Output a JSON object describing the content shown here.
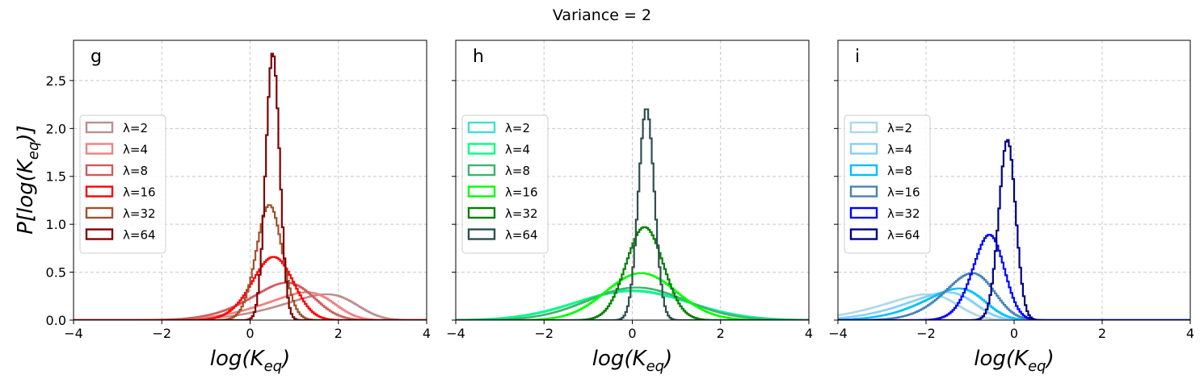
{
  "suptitle": "Variance = 2",
  "ylabel": {
    "main": "P[log(K",
    "sub": "eq",
    "end": ")]"
  },
  "xlabel": {
    "main": "log(K",
    "sub": "eq",
    "end": ")"
  },
  "chart_data": [
    {
      "type": "line",
      "panel": "g",
      "xlim": [
        -4,
        4
      ],
      "ylim": [
        0,
        2.92
      ],
      "x_ticks": [
        -4,
        -2,
        0,
        2,
        4
      ],
      "x_tick_labels": [
        "−4",
        "−2",
        "0",
        "2",
        "4"
      ],
      "y_ticks": [
        0.0,
        0.5,
        1.0,
        1.5,
        2.0,
        2.5
      ],
      "y_tick_labels": [
        "0.0",
        "0.5",
        "1.0",
        "1.5",
        "2.0",
        "2.5"
      ],
      "grid": true,
      "legend_position": "center-left",
      "series": [
        {
          "name": "λ=2",
          "color": "#bc8f8f",
          "mu": 2.4,
          "sigma": 1.4,
          "skew": 3.0,
          "peak": 0.27
        },
        {
          "name": "λ=4",
          "color": "#f08080",
          "mu": 1.9,
          "sigma": 1.3,
          "skew": 3.0,
          "peak": 0.29
        },
        {
          "name": "λ=8",
          "color": "#cd5c5c",
          "mu": 1.4,
          "sigma": 1.1,
          "skew": 2.2,
          "peak": 0.39
        },
        {
          "name": "λ=16",
          "color": "#ff0000",
          "mu": 0.85,
          "sigma": 0.6,
          "skew": 1.2,
          "peak": 0.66
        },
        {
          "name": "λ=32",
          "color": "#a0522d",
          "mu": 0.58,
          "sigma": 0.33,
          "skew": 0.7,
          "peak": 1.2
        },
        {
          "name": "λ=64",
          "color": "#800000",
          "mu": 0.55,
          "sigma": 0.16,
          "skew": 0.3,
          "peak": 2.78
        }
      ]
    },
    {
      "type": "line",
      "panel": "h",
      "xlim": [
        -4,
        4
      ],
      "ylim": [
        0,
        2.92
      ],
      "x_ticks": [
        -4,
        -2,
        0,
        2,
        4
      ],
      "x_tick_labels": [
        "−4",
        "−2",
        "0",
        "2",
        "4"
      ],
      "y_ticks": [
        0.0,
        0.5,
        1.0,
        1.5,
        2.0,
        2.5
      ],
      "grid": true,
      "legend_position": "center-left",
      "series": [
        {
          "name": "λ=2",
          "color": "#40e0d0",
          "mu": 0.0,
          "sigma": 1.3,
          "skew": 0,
          "peak": 0.3
        },
        {
          "name": "λ=4",
          "color": "#00ff7f",
          "mu": 0.0,
          "sigma": 1.25,
          "skew": 0,
          "peak": 0.31
        },
        {
          "name": "λ=8",
          "color": "#3cb371",
          "mu": 0.1,
          "sigma": 1.1,
          "skew": 0,
          "peak": 0.34
        },
        {
          "name": "λ=16",
          "color": "#00ff00",
          "mu": 0.2,
          "sigma": 0.8,
          "skew": 0,
          "peak": 0.49
        },
        {
          "name": "λ=32",
          "color": "#008000",
          "mu": 0.28,
          "sigma": 0.42,
          "skew": 0,
          "peak": 0.97
        },
        {
          "name": "λ=64",
          "color": "#2f4f4f",
          "mu": 0.32,
          "sigma": 0.18,
          "skew": 0,
          "peak": 2.2
        }
      ]
    },
    {
      "type": "line",
      "panel": "i",
      "xlim": [
        -4,
        4
      ],
      "ylim": [
        0,
        2.92
      ],
      "x_ticks": [
        -4,
        -2,
        0,
        2,
        4
      ],
      "x_tick_labels": [
        "−4",
        "−2",
        "0",
        "2",
        "4"
      ],
      "y_ticks": [
        0.0,
        0.5,
        1.0,
        1.5,
        2.0,
        2.5
      ],
      "grid": true,
      "legend_position": "center-left",
      "series": [
        {
          "name": "λ=2",
          "color": "#add8e6",
          "mu": -1.3,
          "sigma": 1.4,
          "skew": 3.0,
          "peak": 0.27
        },
        {
          "name": "λ=4",
          "color": "#87cefa",
          "mu": -0.9,
          "sigma": 1.3,
          "skew": 3.0,
          "peak": 0.29
        },
        {
          "name": "λ=8",
          "color": "#00bfff",
          "mu": -0.7,
          "sigma": 1.1,
          "skew": 2.5,
          "peak": 0.33
        },
        {
          "name": "λ=16",
          "color": "#4682b4",
          "mu": -0.5,
          "sigma": 0.85,
          "skew": 2.0,
          "peak": 0.49
        },
        {
          "name": "λ=32",
          "color": "#0000ff",
          "mu": -0.3,
          "sigma": 0.48,
          "skew": 1.4,
          "peak": 0.89
        },
        {
          "name": "λ=64",
          "color": "#000080",
          "mu": -0.05,
          "sigma": 0.22,
          "skew": 0.8,
          "peak": 1.88
        }
      ]
    }
  ]
}
